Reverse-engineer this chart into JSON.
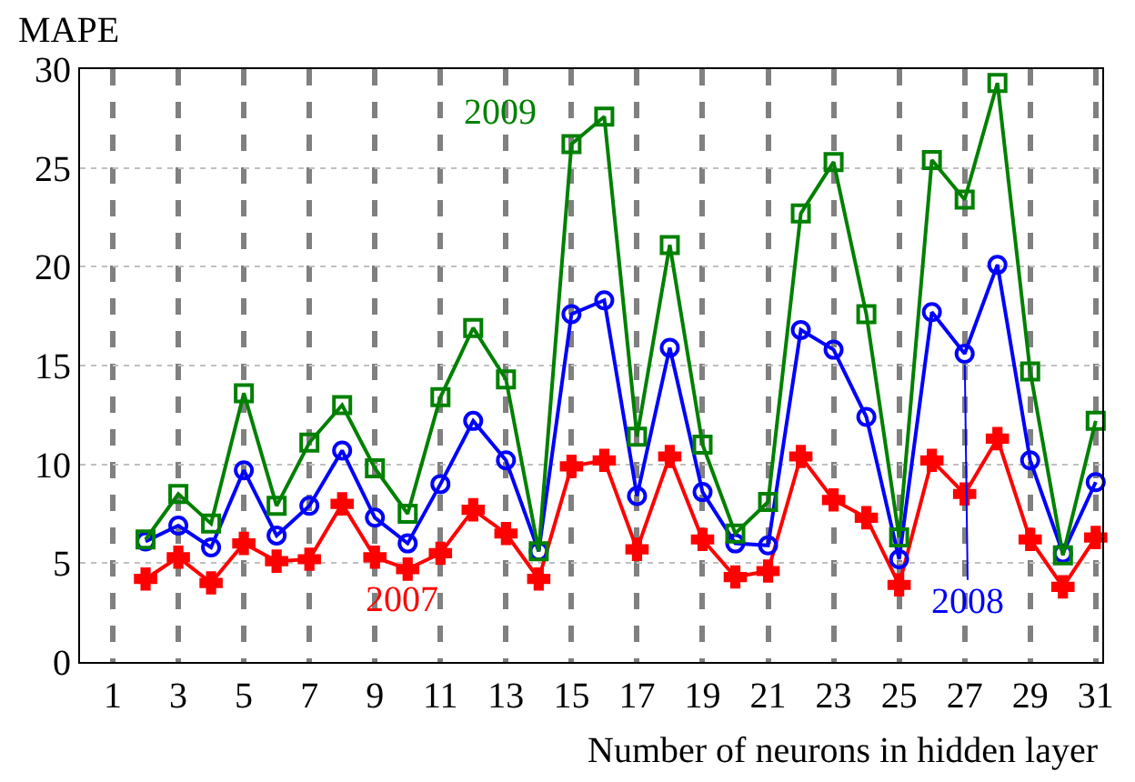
{
  "chart_data": {
    "type": "line",
    "xlabel": "Number of neurons in hidden layer",
    "ylabel": "MAPE",
    "x": [
      2,
      3,
      4,
      5,
      6,
      7,
      8,
      9,
      10,
      11,
      12,
      13,
      14,
      15,
      16,
      17,
      18,
      19,
      20,
      21,
      22,
      23,
      24,
      25,
      26,
      27,
      28,
      29,
      30,
      31
    ],
    "series": [
      {
        "name": "2007",
        "color": "#ff0000",
        "marker": "cross",
        "values": [
          4.2,
          5.3,
          4.0,
          6.0,
          5.1,
          5.2,
          8.0,
          5.3,
          4.7,
          5.5,
          7.7,
          6.5,
          4.2,
          9.9,
          10.2,
          5.7,
          10.4,
          6.2,
          4.3,
          4.6,
          10.4,
          8.2,
          7.3,
          3.9,
          10.2,
          8.5,
          11.3,
          6.2,
          3.8,
          6.3
        ]
      },
      {
        "name": "2008",
        "color": "#0000ff",
        "marker": "circle",
        "values": [
          6.1,
          6.9,
          5.8,
          9.7,
          6.4,
          7.9,
          10.7,
          7.3,
          6.0,
          9.0,
          12.2,
          10.2,
          5.6,
          17.6,
          18.3,
          8.4,
          15.9,
          8.6,
          6.0,
          5.9,
          16.8,
          15.8,
          12.4,
          5.2,
          17.7,
          15.6,
          20.1,
          10.2,
          5.5,
          9.1
        ]
      },
      {
        "name": "2009",
        "color": "#008000",
        "marker": "square",
        "values": [
          6.2,
          8.5,
          7.0,
          13.6,
          7.9,
          11.1,
          13.0,
          9.8,
          7.5,
          13.4,
          16.9,
          14.3,
          5.6,
          26.2,
          27.6,
          11.4,
          21.1,
          11.0,
          6.5,
          8.1,
          22.7,
          25.3,
          17.6,
          6.3,
          25.4,
          23.4,
          29.3,
          14.7,
          5.4,
          12.2
        ]
      }
    ],
    "xlim": [
      0,
      31.2
    ],
    "xticks": [
      1,
      3,
      5,
      7,
      9,
      11,
      13,
      15,
      17,
      19,
      21,
      23,
      25,
      27,
      29,
      31
    ],
    "ylim": [
      0,
      30
    ],
    "yticks": [
      0,
      5,
      10,
      15,
      20,
      25,
      30
    ],
    "grid": true,
    "legend": false
  }
}
